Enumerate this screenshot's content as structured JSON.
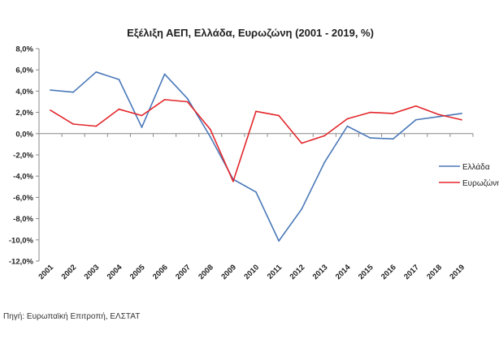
{
  "chart_data": {
    "type": "line",
    "title": "Εξέλιξη ΑΕΠ, Ελλάδα, Ευρωζώνη (2001 - 2019, %)",
    "xlabel": "",
    "ylabel": "",
    "categories": [
      "2001",
      "2002",
      "2003",
      "2004",
      "2005",
      "2006",
      "2007",
      "2008",
      "2009",
      "2010",
      "2011",
      "2012",
      "2013",
      "2014",
      "2015",
      "2016",
      "2017",
      "2018",
      "2019"
    ],
    "ylim": [
      -12,
      8
    ],
    "ytick_labels": [
      "8,0%",
      "6,0%",
      "4,0%",
      "2,0%",
      "0,0%",
      "-2,0%",
      "-4,0%",
      "-6,0%",
      "-8,0%",
      "-10,0%",
      "-12,0%"
    ],
    "ytick_values": [
      8,
      6,
      4,
      2,
      0,
      -2,
      -4,
      -6,
      -8,
      -10,
      -12
    ],
    "grid": false,
    "legend_position": "right",
    "series": [
      {
        "name": "Ελλάδα",
        "color": "#4a78b8",
        "values": [
          4.1,
          3.9,
          5.8,
          5.1,
          0.6,
          5.6,
          3.3,
          -0.3,
          -4.3,
          -5.5,
          -10.1,
          -7.1,
          -2.7,
          0.7,
          -0.4,
          -0.5,
          1.3,
          1.6,
          1.9
        ]
      },
      {
        "name": "Ευρωζώνη",
        "color": "#e3262a",
        "values": [
          2.2,
          0.9,
          0.7,
          2.3,
          1.7,
          3.2,
          3.0,
          0.4,
          -4.5,
          2.1,
          1.7,
          -0.9,
          -0.2,
          1.4,
          2.0,
          1.9,
          2.6,
          1.8,
          1.3
        ]
      }
    ]
  },
  "source": "Πηγή: Ευρωπαϊκή Επιτροπή, ΕΛΣΤΑΤ"
}
